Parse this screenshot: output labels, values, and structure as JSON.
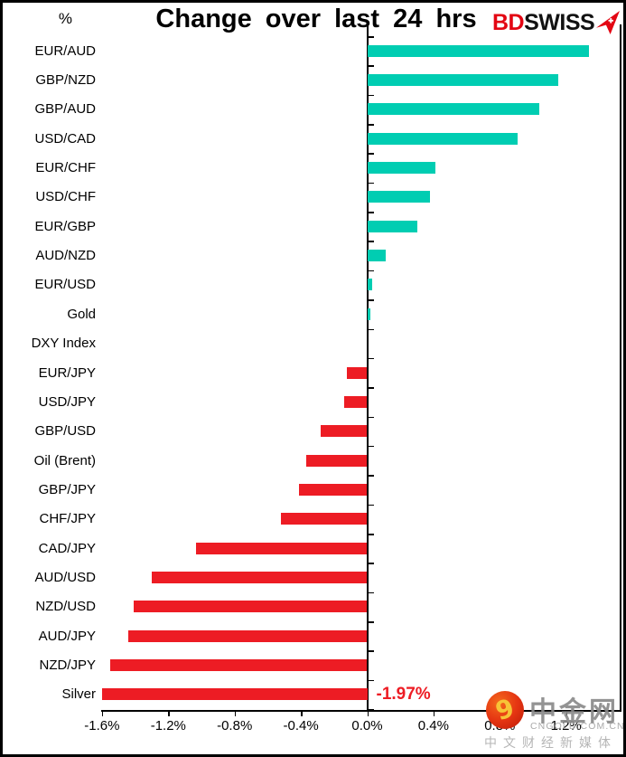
{
  "header": {
    "unit_label": "%",
    "title": "Change over last 24 hrs",
    "logo": {
      "part1": "BD",
      "part2": "SWISS",
      "brand_red": "#E30613"
    }
  },
  "chart_data": {
    "type": "bar",
    "orientation": "horizontal",
    "title": "Change over last 24 hrs",
    "xlabel": "",
    "ylabel": "%",
    "unit": "%",
    "categories": [
      "EUR/AUD",
      "GBP/NZD",
      "GBP/AUD",
      "USD/CAD",
      "EUR/CHF",
      "USD/CHF",
      "EUR/GBP",
      "AUD/NZD",
      "EUR/USD",
      "Gold",
      "DXY Index",
      "EUR/JPY",
      "USD/JPY",
      "GBP/USD",
      "Oil (Brent)",
      "GBP/JPY",
      "CHF/JPY",
      "CAD/JPY",
      "AUD/USD",
      "NZD/USD",
      "AUD/JPY",
      "NZD/JPY",
      "Silver"
    ],
    "values": [
      1.34,
      1.15,
      1.04,
      0.91,
      0.41,
      0.38,
      0.3,
      0.11,
      0.03,
      0.02,
      0.0,
      -0.12,
      -0.14,
      -0.28,
      -0.37,
      -0.41,
      -0.52,
      -1.03,
      -1.3,
      -1.41,
      -1.44,
      -1.55,
      -1.97
    ],
    "x_ticks": [
      "-1.6%",
      "-1.2%",
      "-0.8%",
      "-0.4%",
      "0.0%",
      "0.4%",
      "0.8%",
      "1.2%"
    ],
    "x_tick_values": [
      -1.6,
      -1.2,
      -0.8,
      -0.4,
      0.0,
      0.4,
      0.8,
      1.2
    ],
    "xlim": [
      -1.6,
      1.53
    ],
    "clip_min": -1.6,
    "grid": false,
    "legend": false,
    "colors": {
      "positive": "#00CDB2",
      "negative": "#ED1C24"
    },
    "annotation": {
      "category": "Silver",
      "label": "-1.97%",
      "color": "#ED1C24"
    }
  },
  "watermark": {
    "site_name": "中金网",
    "domain": "CNGOLD.COM.CN",
    "tagline": "中文财经新媒体"
  }
}
